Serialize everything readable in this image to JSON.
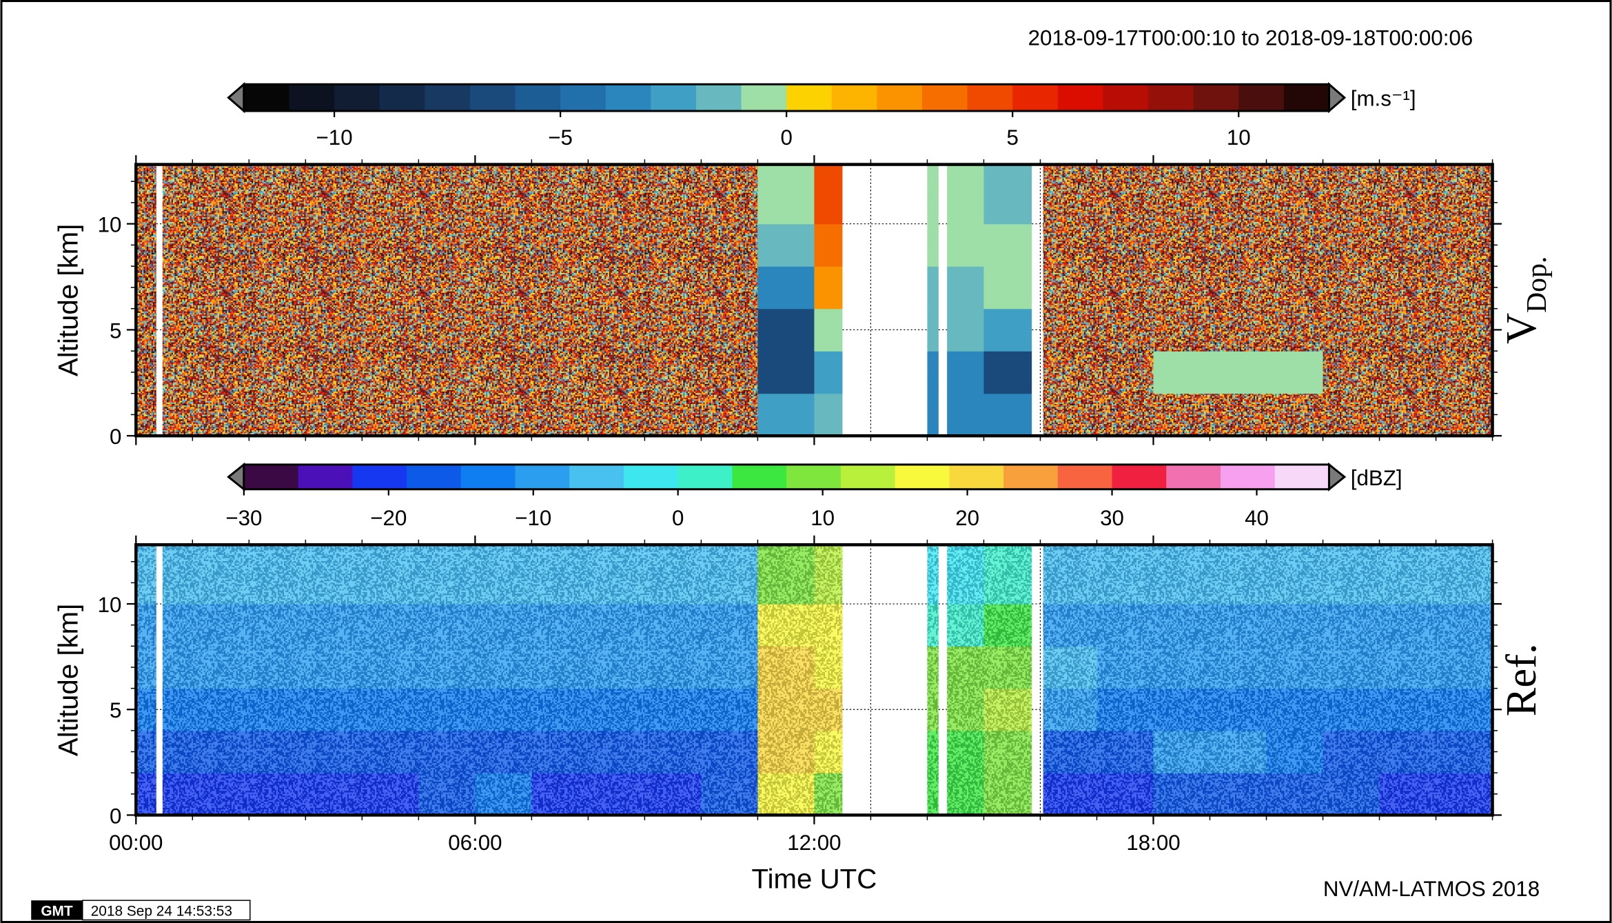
{
  "chart_data": [
    {
      "type": "heatmap",
      "title": "2018-09-17T00:00:10 to 2018-09-18T00:00:06",
      "panel_label": "V",
      "panel_label_sub": "Dop.",
      "ylabel": "Altitude [km]",
      "ylim": [
        0,
        12.8
      ],
      "yticks": [
        0,
        5,
        10
      ],
      "yminorticks": [
        0,
        1,
        2,
        3,
        4,
        5,
        6,
        7,
        8,
        9,
        10,
        11,
        12
      ],
      "xlim": [
        0,
        24
      ],
      "xticks": [
        {
          "value": 0,
          "label": "00:00"
        },
        {
          "value": 6,
          "label": "06:00"
        },
        {
          "value": 12,
          "label": "12:00"
        },
        {
          "value": 18,
          "label": "18:00"
        }
      ],
      "xminorticks": [
        0,
        1,
        2,
        3,
        4,
        5,
        6,
        7,
        8,
        9,
        10,
        11,
        12,
        13,
        14,
        15,
        16,
        17,
        18,
        19,
        20,
        21,
        22,
        23,
        24
      ],
      "xbins": [
        0,
        1,
        2,
        3,
        4,
        5,
        6,
        7,
        8,
        9,
        10,
        11,
        12,
        13,
        14,
        15,
        16,
        17,
        18,
        19,
        20,
        21,
        22,
        23,
        24
      ],
      "ybins": [
        0,
        2,
        4,
        6,
        8,
        10,
        12.8
      ],
      "z": [
        [
          null,
          null,
          null,
          null,
          null,
          null,
          null,
          null,
          null,
          null,
          null,
          -3,
          -2,
          null,
          -4,
          -4,
          null,
          null,
          null,
          null,
          null,
          null,
          null,
          null
        ],
        [
          null,
          null,
          null,
          null,
          null,
          null,
          null,
          null,
          null,
          null,
          null,
          -7,
          -3,
          null,
          -4,
          -7,
          null,
          null,
          -1,
          -1,
          -1,
          null,
          null,
          null
        ],
        [
          null,
          null,
          null,
          null,
          null,
          null,
          null,
          null,
          null,
          null,
          null,
          -7,
          -1,
          null,
          -2,
          -3,
          null,
          null,
          null,
          null,
          null,
          null,
          null,
          null
        ],
        [
          null,
          null,
          null,
          null,
          null,
          null,
          null,
          null,
          null,
          null,
          null,
          -4,
          2,
          null,
          -2,
          -1,
          null,
          null,
          null,
          null,
          null,
          null,
          null,
          null
        ],
        [
          null,
          null,
          null,
          null,
          null,
          null,
          null,
          null,
          null,
          null,
          null,
          -2,
          3,
          null,
          -1,
          -1,
          null,
          null,
          null,
          null,
          null,
          null,
          null,
          null
        ],
        [
          null,
          null,
          null,
          null,
          null,
          null,
          null,
          null,
          null,
          null,
          null,
          -1,
          4,
          null,
          -1,
          -2,
          null,
          null,
          null,
          null,
          null,
          null,
          null,
          null
        ]
      ],
      "gaps": [
        [
          0.36,
          0.47
        ],
        [
          12.5,
          14.0
        ],
        [
          14.2,
          14.35
        ],
        [
          15.85,
          16.05
        ]
      ],
      "grid": true,
      "colorbar": {
        "lim": [
          -12,
          12
        ],
        "unit": "[m.s⁻¹]",
        "ticks": [
          {
            "value": -10,
            "label": "−10"
          },
          {
            "value": -5,
            "label": "−5"
          },
          0,
          5,
          10
        ],
        "colors": [
          "#060606",
          "#0d1220",
          "#111d33",
          "#142a4a",
          "#173962",
          "#1a4a7c",
          "#1d5d95",
          "#2170ab",
          "#2a86bd",
          "#3f9fc4",
          "#67b9bf",
          "#9edfa8",
          "#fcd200",
          "#fcb400",
          "#fb9200",
          "#f66d00",
          "#ef4a00",
          "#e82600",
          "#db0c00",
          "#b80d05",
          "#941009",
          "#6f110c",
          "#4a0f0c",
          "#220706"
        ],
        "extension_color": "#7a7a7a"
      }
    },
    {
      "type": "heatmap",
      "panel_label": "Ref.",
      "ylabel": "Altitude [km]",
      "xlabel": "Time UTC",
      "ylim": [
        0,
        12.8
      ],
      "yticks": [
        0,
        5,
        10
      ],
      "yminorticks": [
        0,
        1,
        2,
        3,
        4,
        5,
        6,
        7,
        8,
        9,
        10,
        11,
        12
      ],
      "xlim": [
        0,
        24
      ],
      "xticks": [
        {
          "value": 0,
          "label": "00:00"
        },
        {
          "value": 6,
          "label": "06:00"
        },
        {
          "value": 12,
          "label": "12:00"
        },
        {
          "value": 18,
          "label": "18:00"
        }
      ],
      "xminorticks": [
        0,
        1,
        2,
        3,
        4,
        5,
        6,
        7,
        8,
        9,
        10,
        11,
        12,
        13,
        14,
        15,
        16,
        17,
        18,
        19,
        20,
        21,
        22,
        23,
        24
      ],
      "xbins": [
        0,
        1,
        2,
        3,
        4,
        5,
        6,
        7,
        8,
        9,
        10,
        11,
        12,
        13,
        14,
        15,
        16,
        17,
        18,
        19,
        20,
        21,
        22,
        23,
        24
      ],
      "ybins": [
        0,
        2,
        4,
        6,
        8,
        10,
        12.8
      ],
      "z": [
        [
          -20,
          -20,
          -20,
          -20,
          -20,
          -18,
          -15,
          -20,
          -20,
          -20,
          -18,
          15,
          10,
          -20,
          5,
          8,
          -20,
          -20,
          -17,
          -17,
          -17,
          -17,
          -20,
          -20
        ],
        [
          -17,
          -17,
          -17,
          -17,
          -17,
          -17,
          -17,
          -17,
          -17,
          -17,
          -17,
          20,
          18,
          -17,
          5,
          10,
          -17,
          -17,
          -8,
          -10,
          -14,
          -17,
          -17,
          -17
        ],
        [
          -13,
          -13,
          -13,
          -13,
          -13,
          -13,
          -13,
          -13,
          -13,
          -13,
          -13,
          22,
          20,
          -13,
          8,
          12,
          -8,
          -13,
          -13,
          -13,
          -13,
          -13,
          -13,
          -13
        ],
        [
          -10,
          -10,
          -10,
          -10,
          -10,
          -10,
          -10,
          -10,
          -10,
          -10,
          -10,
          20,
          18,
          -10,
          8,
          8,
          -6,
          -10,
          -10,
          -10,
          -10,
          -10,
          -10,
          -10
        ],
        [
          -8,
          -8,
          -8,
          -8,
          -8,
          -8,
          -8,
          -8,
          -8,
          -8,
          -8,
          15,
          15,
          -8,
          2,
          5,
          -8,
          -8,
          -8,
          -8,
          -8,
          -8,
          -8,
          -8
        ],
        [
          -7,
          -7,
          -7,
          -7,
          -7,
          -7,
          -7,
          -7,
          -7,
          -7,
          -7,
          10,
          12,
          -7,
          -2,
          0,
          -7,
          -7,
          -7,
          -7,
          -7,
          -7,
          -7,
          -7
        ]
      ],
      "gaps": [
        [
          0.36,
          0.47
        ],
        [
          12.5,
          14.0
        ],
        [
          14.2,
          14.35
        ],
        [
          15.85,
          16.05
        ]
      ],
      "grid": true,
      "colorbar": {
        "lim": [
          -30,
          45
        ],
        "unit": "[dBZ]",
        "ticks": [
          {
            "value": -30,
            "label": "−30"
          },
          {
            "value": -20,
            "label": "−20"
          },
          {
            "value": -10,
            "label": "−10"
          },
          0,
          10,
          20,
          30,
          40
        ],
        "colors": [
          "#3b0a45",
          "#4b10b8",
          "#1538f0",
          "#0e5ae8",
          "#0f7ef0",
          "#2b9ef0",
          "#48c0f0",
          "#3ee6f0",
          "#3ef0c8",
          "#3ce840",
          "#7ee63c",
          "#b8f03c",
          "#f8f83c",
          "#f8d83c",
          "#f8a03c",
          "#f86440",
          "#f02040",
          "#f070b0",
          "#f8a0f0",
          "#f8d8f8"
        ],
        "extension_color": "#7a7a7a"
      }
    }
  ],
  "footer": {
    "credit": "NV/AM-LATMOS 2018",
    "logo": "GMT",
    "timestamp": "2018 Sep 24 14:53:53"
  }
}
